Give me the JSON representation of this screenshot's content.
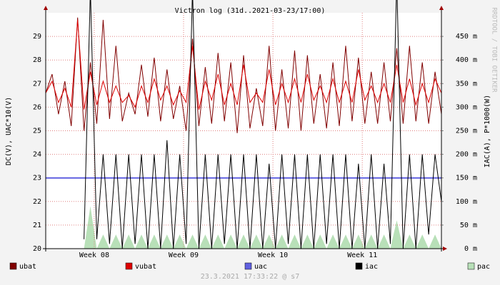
{
  "chart_data": {
    "type": "line",
    "title": "Victron log (31d..2021-03-23/17:00)",
    "ylabel": "DC(V), UAC*10(V)",
    "y2label": "IAC(A), P*1000(W)",
    "watermark": "RRDTOOL / TOBI OETIKER",
    "footer": "23.3.2021 17:33:22 @ s7",
    "grid": true,
    "xlim": [
      0,
      31
    ],
    "xticks": [
      {
        "value": 3.8,
        "label": "Week 08"
      },
      {
        "value": 10.8,
        "label": "Week 09"
      },
      {
        "value": 17.8,
        "label": "Week 10"
      },
      {
        "value": 24.8,
        "label": "Week 11"
      }
    ],
    "ylim": [
      20,
      30
    ],
    "yticks": [
      20,
      21,
      22,
      23,
      24,
      25,
      26,
      27,
      28,
      29
    ],
    "y2lim": [
      0,
      0.5
    ],
    "y2ticks": [
      {
        "value": 0,
        "label": "0 m"
      },
      {
        "value": 0.05,
        "label": "50 m"
      },
      {
        "value": 0.1,
        "label": "100 m"
      },
      {
        "value": 0.15,
        "label": "150 m"
      },
      {
        "value": 0.2,
        "label": "200 m"
      },
      {
        "value": 0.25,
        "label": "250 m"
      },
      {
        "value": 0.3,
        "label": "300 m"
      },
      {
        "value": 0.35,
        "label": "350 m"
      },
      {
        "value": 0.4,
        "label": "400 m"
      },
      {
        "value": 0.45,
        "label": "450 m"
      }
    ],
    "x": [
      0,
      0.5,
      1,
      1.5,
      2,
      2.5,
      3,
      3.5,
      4,
      4.5,
      5,
      5.5,
      6,
      6.5,
      7,
      7.5,
      8,
      8.5,
      9,
      9.5,
      10,
      10.5,
      11,
      11.5,
      12,
      12.5,
      13,
      13.5,
      14,
      14.5,
      15,
      15.5,
      16,
      16.5,
      17,
      17.5,
      18,
      18.5,
      19,
      19.5,
      20,
      20.5,
      21,
      21.5,
      22,
      22.5,
      23,
      23.5,
      24,
      24.5,
      25,
      25.5,
      26,
      26.5,
      27,
      27.5,
      28,
      28.5,
      29,
      29.5,
      30,
      30.5,
      31
    ],
    "series": [
      {
        "name": "ubat",
        "color": "#800000",
        "axis": "y",
        "values": [
          26.6,
          27.4,
          25.7,
          27.1,
          25.2,
          29.8,
          25.0,
          27.9,
          25.3,
          29.7,
          25.5,
          28.6,
          25.4,
          26.6,
          25.7,
          27.8,
          25.6,
          28.1,
          25.4,
          27.6,
          25.5,
          26.9,
          25.0,
          28.9,
          25.2,
          27.7,
          25.3,
          28.3,
          25.4,
          27.9,
          24.9,
          28.2,
          25.1,
          26.8,
          25.2,
          28.6,
          25.0,
          27.6,
          25.1,
          28.4,
          25.0,
          28.2,
          25.3,
          27.4,
          25.1,
          27.9,
          25.2,
          28.6,
          25.4,
          28.1,
          25.3,
          27.5,
          25.3,
          27.9,
          25.4,
          28.5,
          25.3,
          28.6,
          25.4,
          27.9,
          25.3,
          27.5,
          25.7
        ]
      },
      {
        "name": "vubat",
        "color": "#dd0000",
        "axis": "y",
        "values": [
          26.6,
          27.1,
          26.2,
          26.8,
          26.0,
          29.7,
          25.9,
          27.5,
          26.1,
          27.1,
          26.2,
          26.9,
          26.2,
          26.5,
          26.0,
          26.9,
          26.2,
          27.2,
          26.3,
          26.9,
          26.1,
          26.7,
          26.2,
          28.6,
          25.9,
          27.1,
          26.3,
          27.4,
          26.1,
          27.0,
          26.1,
          27.8,
          26.2,
          26.6,
          26.2,
          27.6,
          26.1,
          27.0,
          26.2,
          27.2,
          26.2,
          27.4,
          26.3,
          26.9,
          26.2,
          27.2,
          26.2,
          27.1,
          26.2,
          27.6,
          26.3,
          26.9,
          26.2,
          27.0,
          26.2,
          27.8,
          26.2,
          27.2,
          26.1,
          27.0,
          26.2,
          27.2,
          26.6
        ]
      },
      {
        "name": "uac",
        "color": "#6060e0",
        "axis": "y",
        "values": [
          23,
          23,
          23,
          23,
          23,
          23,
          23,
          23,
          23,
          23,
          23,
          23,
          23,
          23,
          23,
          23,
          23,
          23,
          23,
          23,
          23,
          23,
          23,
          23,
          23,
          23,
          23,
          23,
          23,
          23,
          23,
          23,
          23,
          23,
          23,
          23,
          23,
          23,
          23,
          23,
          23,
          23,
          23,
          23,
          23,
          23,
          23,
          23,
          23,
          23,
          23,
          23,
          23,
          23,
          23,
          23,
          23,
          23,
          23,
          23,
          23,
          23,
          23
        ]
      },
      {
        "name": "iac",
        "color": "#000000",
        "axis": "y2",
        "values": [
          null,
          null,
          null,
          null,
          null,
          null,
          0.02,
          0.55,
          0.02,
          0.2,
          0.01,
          0.2,
          0,
          0.2,
          0.01,
          0.2,
          0,
          0.2,
          0,
          0.23,
          0,
          0.2,
          0.01,
          0.55,
          0,
          0.2,
          0,
          0.2,
          0.01,
          0.2,
          0,
          0.2,
          0,
          0.2,
          0,
          0.18,
          0,
          0.2,
          0.01,
          0.2,
          0,
          0.2,
          0,
          0.2,
          0.01,
          0.2,
          0,
          0.2,
          0,
          0.18,
          0,
          0.2,
          0,
          0.18,
          0.01,
          0.57,
          0,
          0.2,
          0,
          0.2,
          0.03,
          0.2,
          0.1
        ]
      },
      {
        "name": "pac",
        "color": "#b8e0b8",
        "axis": "y2",
        "area": true,
        "values": [
          null,
          null,
          null,
          null,
          null,
          null,
          0,
          0.09,
          0,
          0.03,
          0,
          0.03,
          0,
          0.03,
          0,
          0.03,
          0,
          0.03,
          0,
          0.03,
          0,
          0.03,
          0,
          0.03,
          0,
          0.03,
          0,
          0.03,
          0,
          0.03,
          0,
          0.03,
          0,
          0.03,
          0,
          0.03,
          0,
          0.03,
          0,
          0.03,
          0,
          0.03,
          0,
          0.03,
          0,
          0.03,
          0,
          0.03,
          0,
          0.03,
          0,
          0.03,
          0,
          0.03,
          0,
          0.06,
          0,
          0.03,
          0,
          0.03,
          0,
          0.03,
          0
        ]
      }
    ]
  }
}
